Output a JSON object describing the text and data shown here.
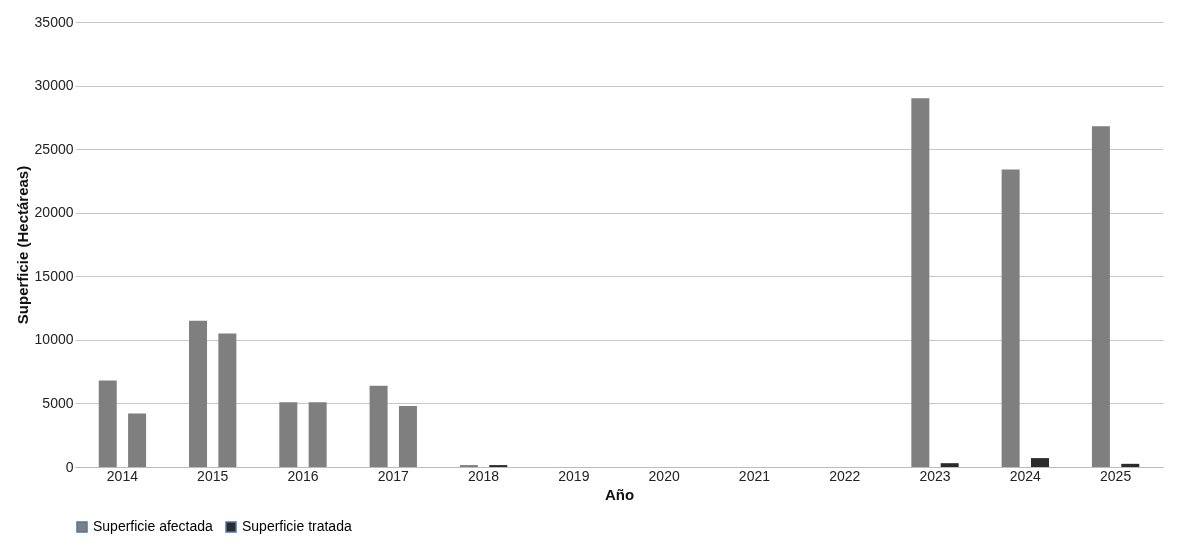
{
  "chart_data": {
    "type": "bar",
    "xlabel": "Año",
    "ylabel": "Superficie (Hectáreas)",
    "categories": [
      "2014",
      "2015",
      "2016",
      "2017",
      "2018",
      "2019",
      "2020",
      "2021",
      "2022",
      "2023",
      "2024",
      "2025"
    ],
    "series": [
      {
        "name": "Superficie afectada",
        "color": "#7f7f7f",
        "values": [
          6800,
          11500,
          5100,
          6400,
          150,
          0,
          0,
          0,
          null,
          29000,
          23400,
          26800
        ]
      },
      {
        "name": "Superficie tratada",
        "color": "#2b2b2b",
        "colors": [
          "#7f7f7f",
          "#7f7f7f",
          "#7f7f7f",
          "#7f7f7f",
          "#2b2b2b",
          "#2b2b2b",
          "#2b2b2b",
          "#2b2b2b",
          "#2b2b2b",
          "#2b2b2b",
          "#2b2b2b",
          "#2b2b2b"
        ],
        "values": [
          4200,
          10500,
          5100,
          4800,
          150,
          0,
          0,
          0,
          null,
          300,
          700,
          250
        ]
      }
    ],
    "ylim": [
      0,
      35000
    ],
    "yticks": [
      0,
      5000,
      10000,
      15000,
      20000,
      25000,
      30000,
      35000
    ],
    "grid": "y",
    "legend": "bottom"
  }
}
